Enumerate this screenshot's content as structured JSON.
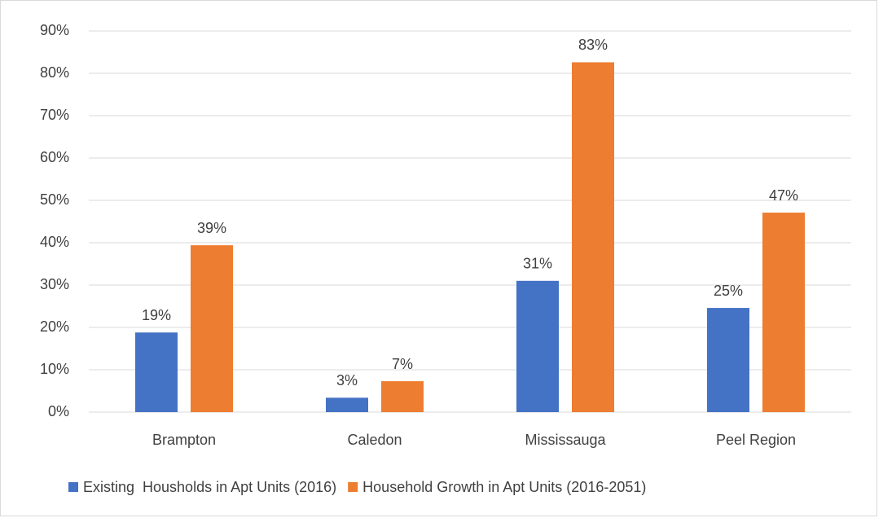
{
  "chart_data": {
    "type": "bar",
    "categories": [
      "Brampton",
      "Caledon",
      "Mississauga",
      "Peel Region"
    ],
    "series": [
      {
        "name": "Existing  Housholds in Apt Units (2016)",
        "color": "#4472c4",
        "values": [
          18.8,
          3.4,
          31.0,
          24.6
        ],
        "value_labels": [
          "19%",
          "3%",
          "31%",
          "25%"
        ]
      },
      {
        "name": "Household Growth in Apt Units (2016-2051)",
        "color": "#ed7d31",
        "values": [
          39.4,
          7.3,
          82.6,
          47.1
        ],
        "value_labels": [
          "39%",
          "7%",
          "83%",
          "47%"
        ]
      }
    ],
    "ylim": [
      0,
      90
    ],
    "yticks": [
      {
        "value": 0,
        "label": "0%"
      },
      {
        "value": 10,
        "label": "10%"
      },
      {
        "value": 20,
        "label": "20%"
      },
      {
        "value": 30,
        "label": "30%"
      },
      {
        "value": 40,
        "label": "40%"
      },
      {
        "value": 50,
        "label": "50%"
      },
      {
        "value": 60,
        "label": "60%"
      },
      {
        "value": 70,
        "label": "70%"
      },
      {
        "value": 80,
        "label": "80%"
      },
      {
        "value": 90,
        "label": "90%"
      }
    ],
    "grid": true,
    "legend": "bottom"
  }
}
